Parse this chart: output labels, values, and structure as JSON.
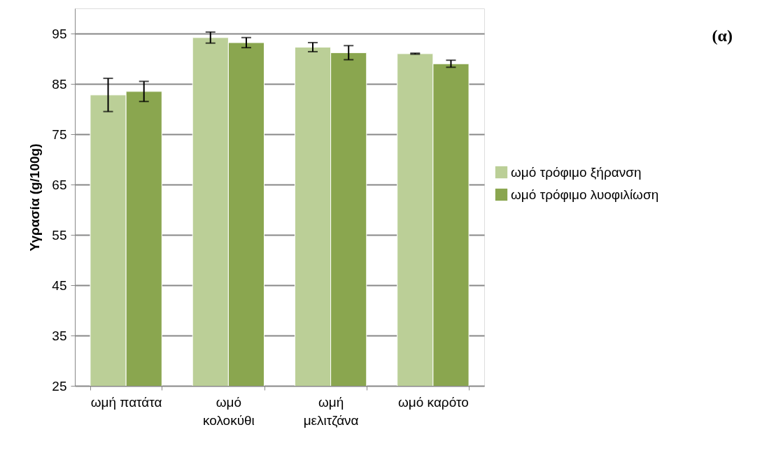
{
  "chart_data": {
    "type": "bar",
    "ylabel": "Υγρασία (g/100g)",
    "categories": [
      "ωμή πατάτα",
      "ωμό κολοκύθι",
      "ωμή μελιτζάνα",
      "ωμό καρότο"
    ],
    "series": [
      {
        "name": "ωμό τρόφιμο ξήρανση",
        "color": "#bbcf97",
        "values": [
          82.8,
          94.2,
          92.3,
          91.0
        ],
        "errors": [
          3.3,
          1.1,
          0.9,
          0.1
        ]
      },
      {
        "name": "ωμό τρόφιμο λυοφιλίωση",
        "color": "#8aa64f",
        "values": [
          83.5,
          93.2,
          91.2,
          89.0
        ],
        "errors": [
          2.0,
          1.0,
          1.4,
          0.7
        ]
      }
    ],
    "ylim": [
      25,
      100
    ],
    "yticks": [
      25,
      35,
      45,
      55,
      65,
      75,
      85,
      95
    ],
    "grid": "y",
    "legend": "right",
    "annotations": [
      "(α)"
    ]
  }
}
